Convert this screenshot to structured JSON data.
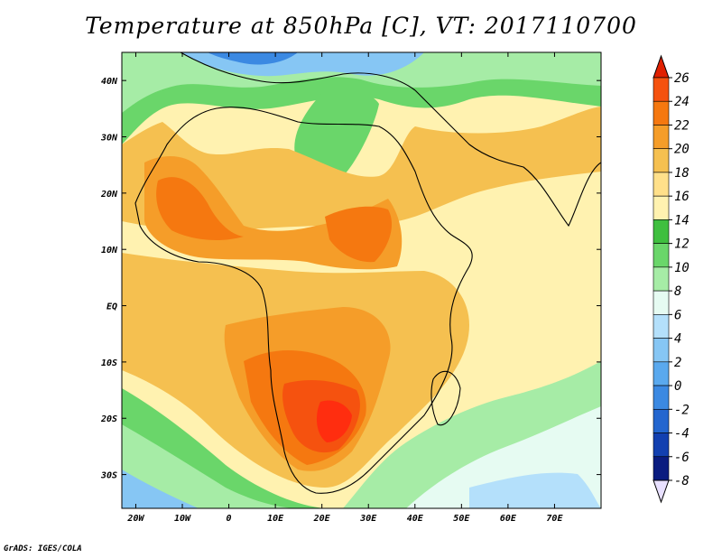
{
  "title": "Temperature at 850hPa [C], VT: 2017110700",
  "credit": "GrADS: IGES/COLA",
  "axes": {
    "lat_ticks": [
      {
        "v": 40,
        "label": "40N"
      },
      {
        "v": 30,
        "label": "30N"
      },
      {
        "v": 20,
        "label": "20N"
      },
      {
        "v": 10,
        "label": "10N"
      },
      {
        "v": 0,
        "label": "EQ"
      },
      {
        "v": -10,
        "label": "10S"
      },
      {
        "v": -20,
        "label": "20S"
      },
      {
        "v": -30,
        "label": "30S"
      }
    ],
    "lon_ticks": [
      {
        "v": -20,
        "label": "20W"
      },
      {
        "v": -10,
        "label": "10W"
      },
      {
        "v": 0,
        "label": "0"
      },
      {
        "v": 10,
        "label": "10E"
      },
      {
        "v": 20,
        "label": "20E"
      },
      {
        "v": 30,
        "label": "30E"
      },
      {
        "v": 40,
        "label": "40E"
      },
      {
        "v": 50,
        "label": "50E"
      },
      {
        "v": 60,
        "label": "60E"
      },
      {
        "v": 70,
        "label": "70E"
      }
    ],
    "lon_range": [
      -23,
      80
    ],
    "lat_range": [
      -36,
      45
    ]
  },
  "colorbar": {
    "levels": [
      "26",
      "24",
      "22",
      "20",
      "18",
      "16",
      "14",
      "12",
      "10",
      "8",
      "6",
      "4",
      "2",
      "0",
      "-2",
      "-4",
      "-6",
      "-8"
    ],
    "colors": [
      "#ff2d0f",
      "#f5520f",
      "#f57810",
      "#f59d29",
      "#f5c050",
      "#ffe08a",
      "#fff2b0",
      "#3fbf3f",
      "#6ad66a",
      "#a6eca6",
      "#e6fbf2",
      "#b4e0fb",
      "#86c6f4",
      "#5aa9ee",
      "#3b89e2",
      "#2366cf",
      "#1240b0",
      "#0a1c80"
    ],
    "over_color": "#e02000",
    "under_color": "#e8e0ff"
  }
}
